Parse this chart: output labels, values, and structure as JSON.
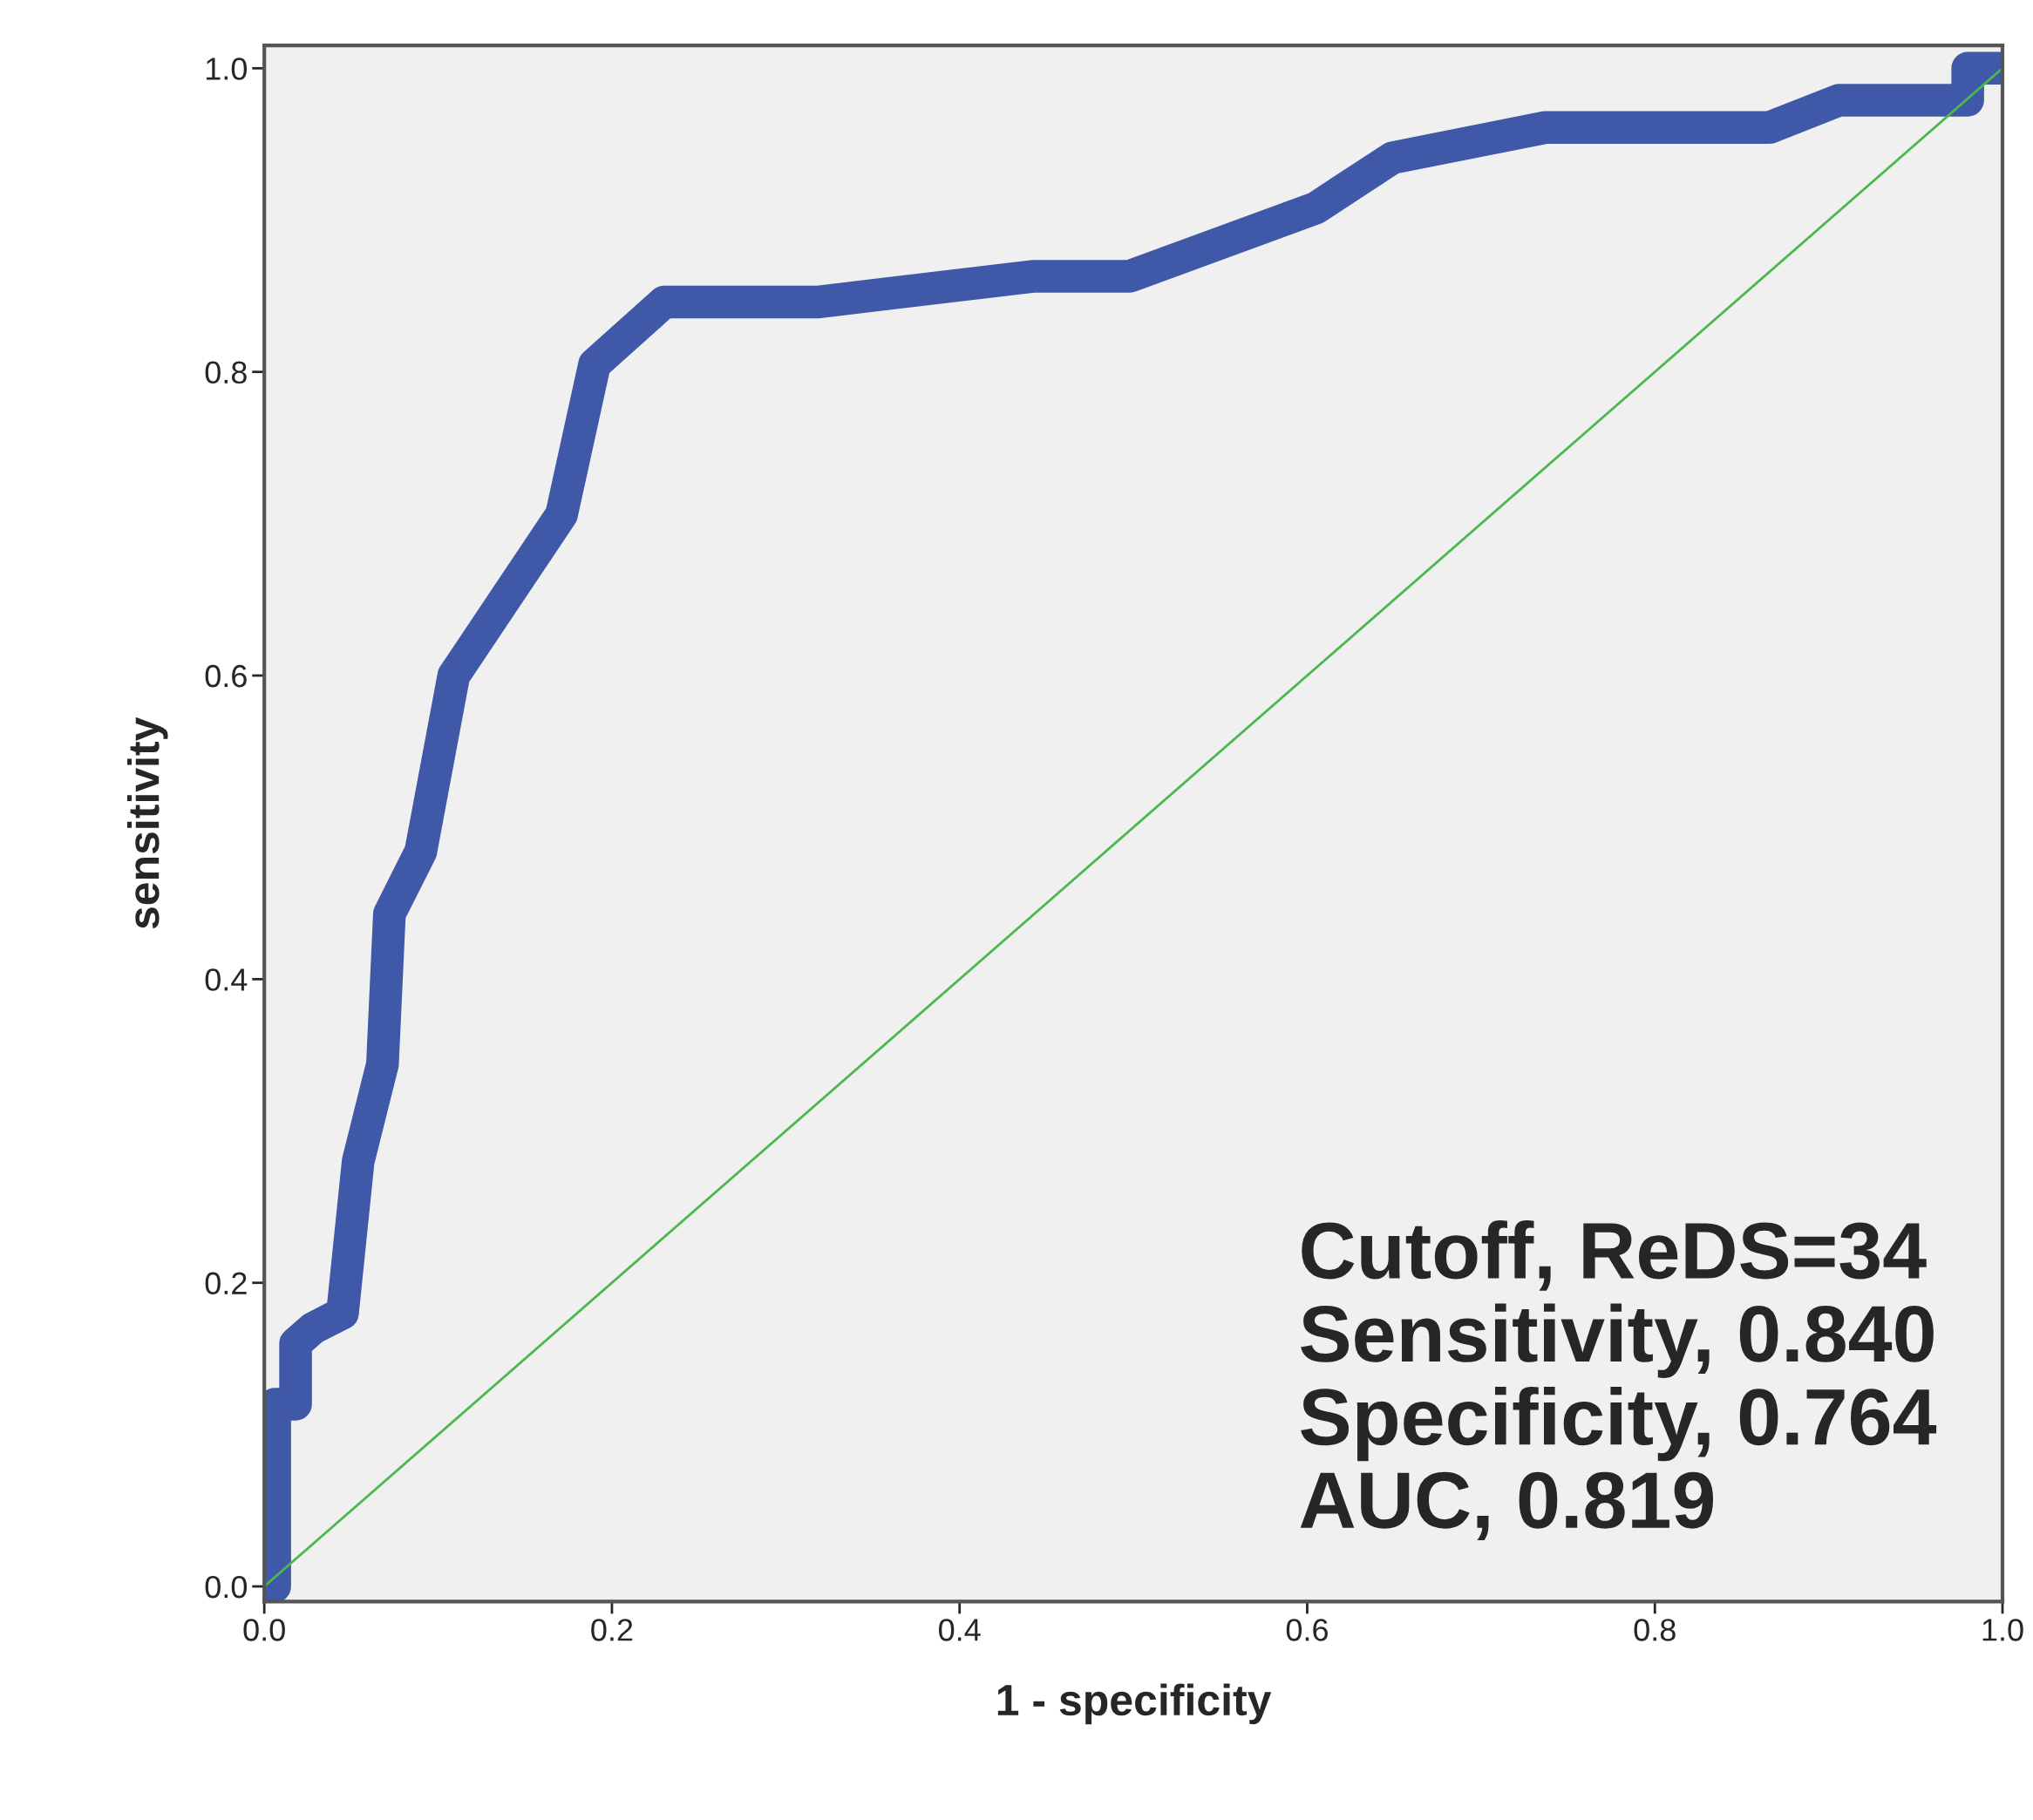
{
  "chart_data": {
    "type": "line",
    "xlabel": "1 - specificity",
    "ylabel": "sensitivity",
    "series": [
      {
        "color": "#3f58a8",
        "x": [
          0,
          0.006,
          0.006,
          0.018,
          0.018,
          0.028,
          0.045,
          0.054,
          0.068,
          0.072,
          0.09,
          0.109,
          0.171,
          0.19,
          0.23,
          0.318,
          0.443,
          0.498,
          0.605,
          0.649,
          0.737,
          0.866,
          0.906,
          0.98,
          0.98,
          1.0
        ],
        "values": [
          0,
          0,
          0.12,
          0.12,
          0.16,
          0.17,
          0.18,
          0.28,
          0.344,
          0.443,
          0.484,
          0.6,
          0.706,
          0.805,
          0.846,
          0.846,
          0.863,
          0.863,
          0.908,
          0.941,
          0.961,
          0.961,
          0.979,
          0.979,
          1.0,
          1.0
        ]
      },
      {
        "color": "#4bb84b",
        "x": [
          0,
          1
        ],
        "values": [
          0,
          1
        ]
      }
    ],
    "xlim": [
      0,
      1.0
    ],
    "ylim": [
      -0.01,
      1.015
    ],
    "xticks": [
      {
        "value": 0,
        "label": "0.0"
      },
      0.2,
      0.4,
      0.6,
      0.8,
      {
        "value": 1,
        "label": "1.0"
      }
    ],
    "yticks": [
      {
        "value": 0,
        "label": "0.0"
      },
      0.2,
      0.4,
      0.6,
      0.8,
      {
        "value": 1,
        "label": "1.0"
      }
    ],
    "grid": false,
    "legend": false,
    "annotations": [
      "Cutoff, ReDS=34",
      "Sensitivity, 0.840",
      "Specificity, 0.764",
      "AUC, 0.819"
    ]
  }
}
